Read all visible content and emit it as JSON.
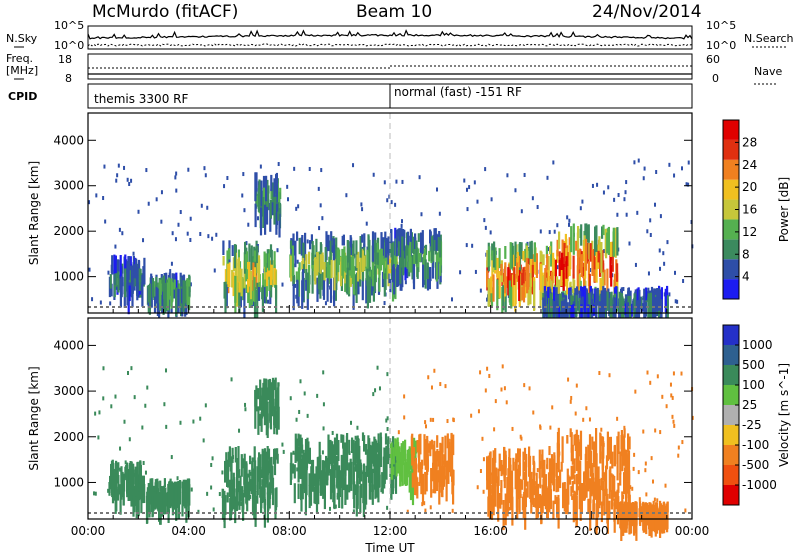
{
  "header": {
    "station": "McMurdo (fitACF)",
    "beam": "Beam 10",
    "date": "24/Nov/2014"
  },
  "top_panel": {
    "left_labels": [
      "N.Sky",
      "Freq.",
      "[MHz]",
      "CPID"
    ],
    "right_labels": [
      "N.Search",
      "Nave"
    ],
    "nsky_ticks": [
      "10^5",
      "10^0"
    ],
    "freq_ticks": [
      "18",
      "8"
    ],
    "nave_ticks": [
      "60",
      "0"
    ],
    "cpid_labels": [
      "themis 3300 RF",
      "normal (fast) -151 RF"
    ]
  },
  "chart_data": [
    {
      "type": "heatmap",
      "panel": "power",
      "ylabel": "Slant Range [km]",
      "ylim": [
        200,
        4600
      ],
      "yticks": [
        1000,
        2000,
        3000,
        4000
      ],
      "xlim": [
        0,
        24
      ],
      "colorbar": {
        "label": "Power [dB]",
        "ticks": [
          "28",
          "24",
          "20",
          "16",
          "12",
          "8",
          "4"
        ],
        "colors": [
          "#1c1cf0",
          "#2e4ea8",
          "#3b8a5e",
          "#55b050",
          "#c6c63a",
          "#f0c020",
          "#f08020",
          "#e03010",
          "#e00000"
        ]
      },
      "regions": [
        {
          "t0": 0.8,
          "t1": 2.2,
          "r0": 800,
          "r1": 1500,
          "p": 8
        },
        {
          "t0": 2.3,
          "t1": 4.0,
          "r0": 700,
          "r1": 1100,
          "p": 12
        },
        {
          "t0": 5.3,
          "t1": 7.5,
          "r0": 700,
          "r1": 1800,
          "p": 18
        },
        {
          "t0": 6.6,
          "t1": 7.6,
          "r0": 2500,
          "r1": 3300,
          "p": 12
        },
        {
          "t0": 8.0,
          "t1": 12.2,
          "r0": 900,
          "r1": 2000,
          "p": 14
        },
        {
          "t0": 12.0,
          "t1": 14.0,
          "r0": 1200,
          "r1": 2100,
          "p": 12
        },
        {
          "t0": 15.8,
          "t1": 18.5,
          "r0": 700,
          "r1": 1800,
          "p": 26
        },
        {
          "t0": 18.5,
          "t1": 21.0,
          "r0": 600,
          "r1": 2200,
          "p": 28
        },
        {
          "t0": 18.0,
          "t1": 23.0,
          "r0": 380,
          "r1": 800,
          "p": 8
        }
      ]
    },
    {
      "type": "heatmap",
      "panel": "velocity",
      "ylabel": "Slant Range [km]",
      "ylim": [
        200,
        4600
      ],
      "yticks": [
        1000,
        2000,
        3000,
        4000
      ],
      "xlim": [
        0,
        24
      ],
      "xticks": [
        "00:00",
        "04:00",
        "08:00",
        "12:00",
        "16:00",
        "20:00",
        "00:00"
      ],
      "xlabel": "Time UT",
      "colorbar": {
        "label": "Velocity [m s^-1]",
        "ticks": [
          "1000",
          "500",
          "100",
          "25",
          "-25",
          "-100",
          "-500",
          "-1000"
        ],
        "colors": [
          "#2430c8",
          "#2e6090",
          "#3a8a5a",
          "#60c040",
          "#b0b0b0",
          "#f0c020",
          "#f08020",
          "#f05010",
          "#e00000"
        ]
      },
      "regions": [
        {
          "t0": 0.8,
          "t1": 2.2,
          "r0": 800,
          "r1": 1500,
          "v": 300
        },
        {
          "t0": 2.3,
          "t1": 4.0,
          "r0": 700,
          "r1": 1100,
          "v": 300
        },
        {
          "t0": 5.3,
          "t1": 7.5,
          "r0": 600,
          "r1": 1800,
          "v": 300
        },
        {
          "t0": 6.6,
          "t1": 7.6,
          "r0": 2500,
          "r1": 3300,
          "v": 300
        },
        {
          "t0": 8.0,
          "t1": 12.2,
          "r0": 900,
          "r1": 2100,
          "v": 300
        },
        {
          "t0": 12.0,
          "t1": 13.0,
          "r0": 1200,
          "r1": 2000,
          "v": 80
        },
        {
          "t0": 12.8,
          "t1": 14.5,
          "r0": 1100,
          "r1": 2100,
          "v": -300
        },
        {
          "t0": 15.8,
          "t1": 18.5,
          "r0": 600,
          "r1": 1800,
          "v": -300
        },
        {
          "t0": 18.5,
          "t1": 21.5,
          "r0": 500,
          "r1": 2200,
          "v": -300
        },
        {
          "t0": 21.0,
          "t1": 23.0,
          "r0": 400,
          "r1": 600,
          "v": -300
        }
      ]
    }
  ]
}
